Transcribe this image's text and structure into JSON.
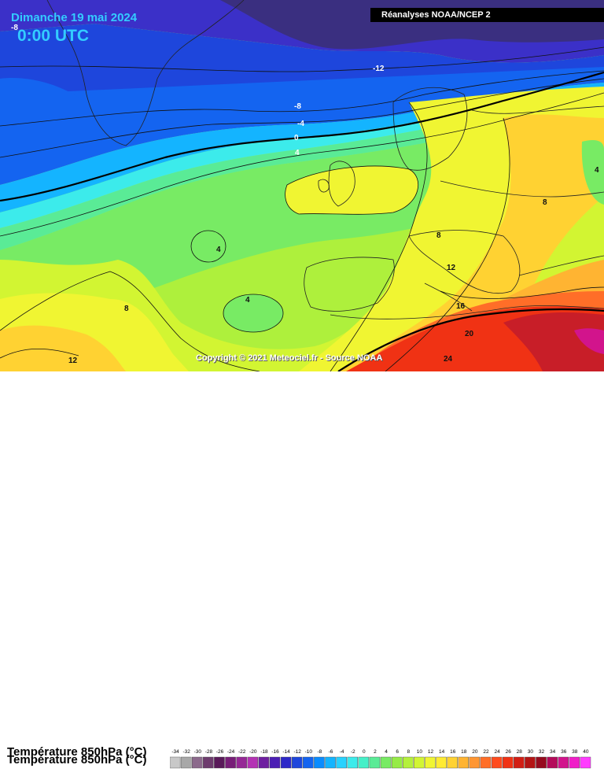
{
  "header": {
    "date": "Dimanche 19 mai 2024",
    "time": "0:00 UTC",
    "source": "Réanalyses NOAA/NCEP 2"
  },
  "copyright": "Copyright © 2021 Meteociel.fr - Source NOAA",
  "variable": {
    "title": "Température 850hPa (°C)"
  },
  "contour_labels": [
    "-8",
    "-12",
    "-8",
    "-4",
    "0",
    "4",
    "4",
    "4",
    "4",
    "8",
    "8",
    "8",
    "12",
    "12",
    "16",
    "20",
    "24"
  ],
  "legend": {
    "ticks": [
      "-34",
      "-32",
      "-30",
      "-28",
      "-26",
      "-24",
      "-22",
      "-20",
      "-18",
      "-16",
      "-14",
      "-12",
      "-10",
      "-8",
      "-6",
      "-4",
      "-2",
      "0",
      "2",
      "4",
      "6",
      "8",
      "10",
      "12",
      "14",
      "16",
      "18",
      "20",
      "22",
      "24",
      "26",
      "28",
      "30",
      "32",
      "34",
      "36",
      "38",
      "40"
    ],
    "colors": [
      "#c8c8c8",
      "#a8a8a8",
      "#8c6a8c",
      "#6e3c6e",
      "#5a1a5a",
      "#781e78",
      "#962896",
      "#b432b4",
      "#6e1ea0",
      "#4b1eb4",
      "#2d28c8",
      "#1e46dc",
      "#1464f0",
      "#0a8cff",
      "#14b4ff",
      "#28d2ff",
      "#3cebeb",
      "#46f0c8",
      "#5aeb96",
      "#78eb64",
      "#96eb46",
      "#b4f03c",
      "#d2f532",
      "#f0f532",
      "#ffeb32",
      "#ffd232",
      "#ffb432",
      "#ff9632",
      "#ff6e28",
      "#ff4b1e",
      "#f03214",
      "#d21e14",
      "#b41414",
      "#960a1e",
      "#b40a5a",
      "#d2148c",
      "#f01ec8",
      "#ff3cff"
    ]
  }
}
